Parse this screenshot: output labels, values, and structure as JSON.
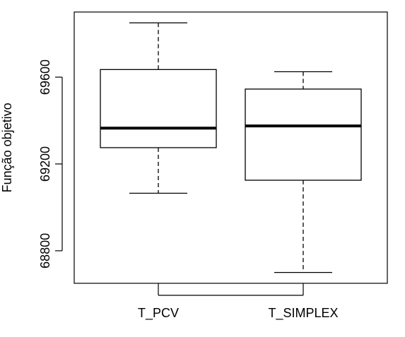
{
  "chart_data": {
    "type": "boxplot",
    "title": "",
    "xlabel": "",
    "ylabel": "Função objetivo",
    "ylim": [
      68650,
      69900
    ],
    "yticks": [
      {
        "value": 68800,
        "label": "68800"
      },
      {
        "value": 69200,
        "label": "69200"
      },
      {
        "value": 69600,
        "label": "69600"
      }
    ],
    "categories": [
      "T_PCV",
      "T_SIMPLEX"
    ],
    "series": [
      {
        "name": "T_PCV",
        "whisker_low": 69065,
        "q1": 69275,
        "median": 69365,
        "q3": 69635,
        "whisker_high": 69850
      },
      {
        "name": "T_SIMPLEX",
        "whisker_low": 68700,
        "q1": 69125,
        "median": 69375,
        "q3": 69545,
        "whisker_high": 69625
      }
    ]
  }
}
